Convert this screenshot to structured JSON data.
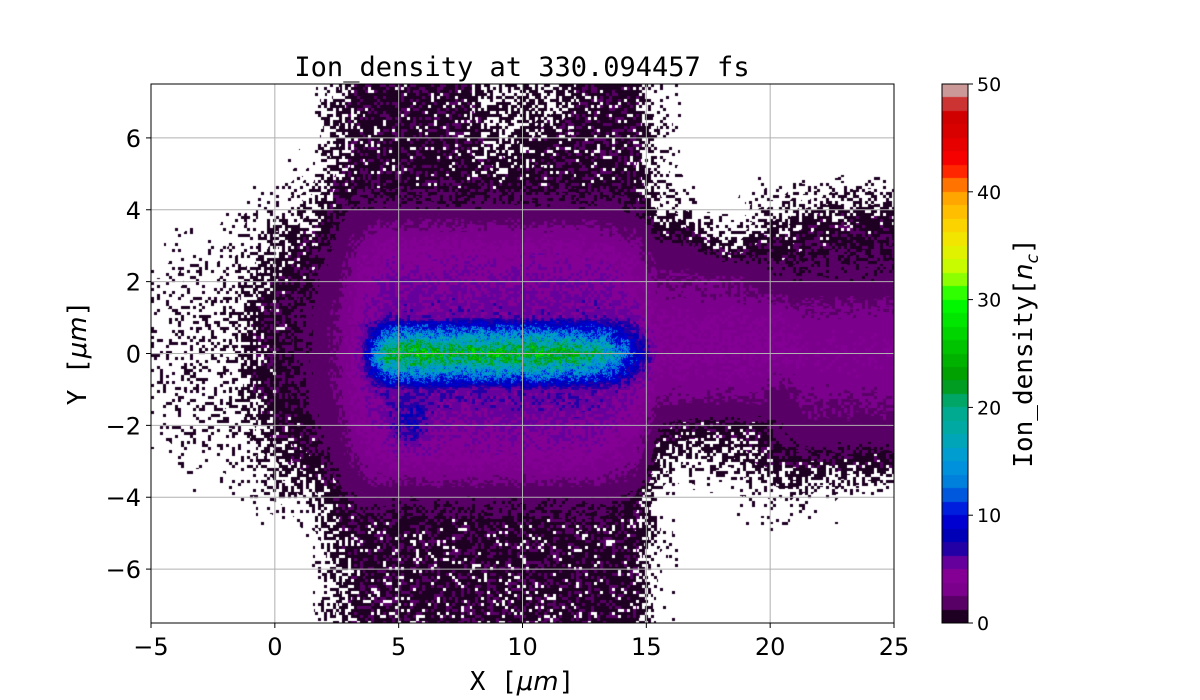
{
  "chart_data": {
    "type": "heatmap",
    "title": "Ion_density at 330.094457 fs",
    "xlabel": "X [μm]",
    "ylabel": "Y [μm]",
    "xlabel_prefix": "X ",
    "ylabel_prefix": "Y ",
    "unit_text": "μm",
    "xlim": [
      -5,
      25
    ],
    "ylim": [
      -7.5,
      7.5
    ],
    "xticks": [
      -5,
      0,
      5,
      10,
      15,
      20,
      25
    ],
    "yticks": [
      -6,
      -4,
      -2,
      0,
      2,
      4,
      6
    ],
    "grid": true,
    "colormap": "nipy_spectral",
    "colorbar": {
      "label": "Ion_density[n_c]",
      "label_main": "Ion_density",
      "label_sub": "c",
      "label_var": "n",
      "range": [
        0,
        50
      ],
      "ticks": [
        0,
        10,
        20,
        30,
        40,
        50
      ],
      "levels": 40
    },
    "grid_x_centers": [
      -4.5,
      -3.5,
      -2.5,
      -1.5,
      -0.5,
      0.5,
      1.5,
      2.5,
      3.5,
      4.5,
      5.5,
      6.5,
      7.5,
      8.5,
      9.5,
      10.5,
      11.5,
      12.5,
      13.5,
      14.5,
      15.5,
      16.5,
      17.5,
      18.5,
      19.5,
      20.5,
      21.5,
      22.5,
      23.5,
      24.5
    ],
    "grid_y_centers": [
      7,
      6,
      5,
      4,
      3,
      2,
      1,
      0,
      -1,
      -2,
      -3,
      -4,
      -5,
      -6,
      -7
    ],
    "values": [
      [
        0,
        0,
        0,
        0,
        0,
        0,
        0,
        0.6,
        1,
        1,
        1,
        1,
        1,
        0.6,
        0.6,
        0.6,
        0.6,
        1,
        1,
        1,
        0.2,
        0,
        0,
        0,
        0,
        0,
        0,
        0,
        0,
        0
      ],
      [
        0,
        0,
        0,
        0,
        0,
        0,
        0,
        0.6,
        1,
        1,
        1,
        1,
        1,
        0.8,
        0.6,
        0.8,
        1,
        1,
        1,
        1,
        0.3,
        0,
        0,
        0,
        0,
        0,
        0,
        0,
        0,
        0
      ],
      [
        0,
        0,
        0,
        0,
        0,
        0,
        0.2,
        0.8,
        1,
        1,
        1,
        1,
        1,
        1,
        0.8,
        1,
        1,
        1,
        1,
        1,
        0.2,
        0,
        0,
        0,
        0,
        0,
        0,
        0,
        0,
        0
      ],
      [
        0,
        0,
        0,
        0.1,
        0.2,
        0.3,
        0.6,
        1.2,
        1.5,
        1.5,
        1.5,
        1.5,
        1.5,
        1.5,
        1.5,
        1.5,
        1.5,
        1.5,
        1.5,
        1.2,
        0.5,
        0.2,
        0,
        0,
        0.2,
        0.3,
        0.6,
        0.8,
        0.8,
        0.8
      ],
      [
        0,
        0.1,
        0.1,
        0.2,
        0.5,
        0.8,
        1,
        1.5,
        3,
        4,
        4,
        4,
        4,
        4,
        4,
        4,
        4,
        4,
        3.5,
        3,
        1.5,
        1.5,
        1,
        0.5,
        1,
        1,
        1.2,
        1.2,
        1.2,
        1.2
      ],
      [
        0.1,
        0.2,
        0.2,
        0.3,
        0.8,
        1,
        1.2,
        2,
        4,
        5,
        5,
        5,
        5,
        5,
        5,
        5,
        5,
        5,
        5,
        4,
        2.5,
        2.5,
        2.5,
        2.5,
        2,
        1.5,
        1.5,
        1.5,
        1.5,
        1.5
      ],
      [
        0.2,
        0.3,
        0.3,
        0.4,
        1,
        1.2,
        1.5,
        2.5,
        4.5,
        5.5,
        5.5,
        5.5,
        5.5,
        5.5,
        5.5,
        5.5,
        5.5,
        5.5,
        5.5,
        5,
        3.5,
        3.5,
        3.5,
        3.5,
        3.5,
        3.5,
        3,
        3,
        3,
        3
      ],
      [
        0.2,
        0.3,
        0.3,
        0.5,
        1,
        1.2,
        1.5,
        2.5,
        5,
        22,
        25,
        24,
        23,
        24,
        24,
        24,
        23,
        22,
        18,
        10,
        4,
        4,
        4,
        4,
        4,
        4,
        3.5,
        3.5,
        3.5,
        3.5
      ],
      [
        0.2,
        0.3,
        0.3,
        0.4,
        1,
        1.2,
        1.5,
        2.5,
        4.5,
        6,
        6,
        6,
        6,
        6,
        6,
        6,
        6,
        6,
        5.5,
        5,
        3,
        3,
        3,
        3,
        3,
        2,
        3,
        3,
        3,
        3
      ],
      [
        0.1,
        0.2,
        0.3,
        0.3,
        0.8,
        1,
        1.2,
        2,
        4,
        5,
        8,
        5,
        4.5,
        5,
        5,
        5,
        5,
        5,
        5,
        4,
        1.5,
        1,
        1,
        1,
        1,
        1.5,
        2,
        2,
        2,
        2
      ],
      [
        0,
        0.1,
        0.1,
        0.2,
        0.5,
        0.8,
        1,
        1.5,
        3,
        4,
        4,
        4,
        4,
        4,
        4,
        4,
        4,
        4,
        3.5,
        3,
        0.5,
        0.3,
        0.5,
        0.5,
        0.8,
        1,
        1,
        1,
        1,
        1
      ],
      [
        0,
        0,
        0,
        0,
        0.2,
        0.3,
        0.5,
        1,
        1.5,
        1.5,
        1.5,
        1.5,
        1.5,
        1.5,
        1.5,
        1.5,
        1.5,
        1.5,
        1.5,
        1.2,
        0.2,
        0,
        0,
        0,
        0.2,
        0.3,
        0.2,
        0.1,
        0,
        0
      ],
      [
        0,
        0,
        0,
        0,
        0,
        0,
        0.1,
        0.8,
        1,
        1,
        1,
        1,
        1,
        1,
        1,
        1,
        1,
        1,
        1,
        1,
        0.2,
        0,
        0,
        0,
        0,
        0,
        0,
        0,
        0,
        0
      ],
      [
        0,
        0,
        0,
        0,
        0,
        0,
        0,
        0.6,
        1,
        1,
        1,
        1,
        1,
        1,
        1,
        1,
        1,
        1,
        1,
        1,
        0.1,
        0,
        0,
        0,
        0,
        0,
        0,
        0,
        0,
        0
      ],
      [
        0,
        0,
        0,
        0,
        0,
        0,
        0,
        0.6,
        1,
        1,
        1,
        1,
        1,
        1,
        1,
        1,
        1,
        1,
        1,
        1,
        0.1,
        0,
        0,
        0,
        0,
        0,
        0,
        0,
        0,
        0
      ]
    ]
  }
}
